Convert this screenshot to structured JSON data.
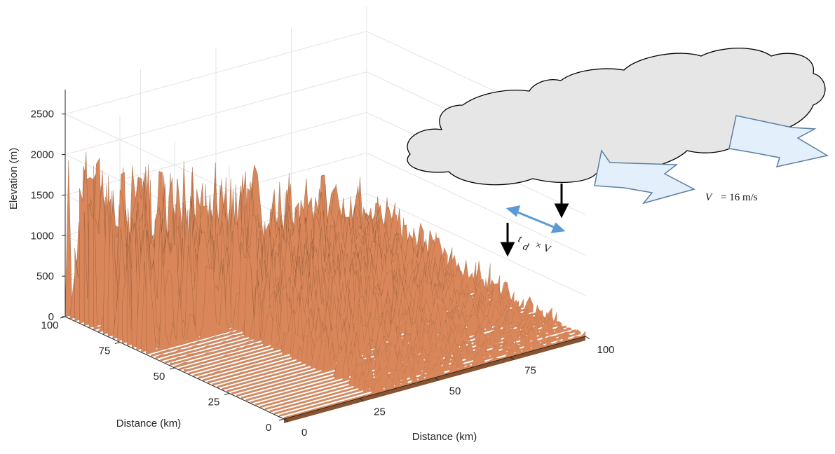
{
  "chart_data": {
    "type": "surface",
    "xlabel": "Distance (km)",
    "ylabel": "Distance (km)",
    "zlabel": "Elevation (m)",
    "xlim": [
      0,
      100
    ],
    "xticks": [
      0,
      25,
      50,
      75,
      100
    ],
    "ylim": [
      0,
      100
    ],
    "yticks": [
      0,
      25,
      50,
      75,
      100
    ],
    "zlim": [
      0,
      2800
    ],
    "zticks": [
      0,
      500,
      1000,
      1500,
      2000,
      2500
    ],
    "color": "#d9875a",
    "grid": true,
    "annotations": {
      "velocity_symbol": "V",
      "velocity_value": "= 16 m/s",
      "delay_symbol": "t",
      "delay_subscript": "d",
      "delay_product": "× V"
    }
  }
}
